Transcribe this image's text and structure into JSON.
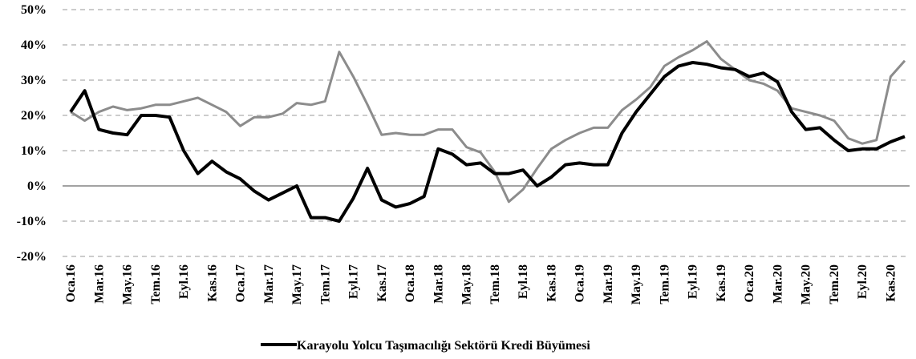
{
  "chart_data": {
    "type": "line",
    "categories": [
      "Oca.16",
      null,
      "Mar.16",
      null,
      "May.16",
      null,
      "Tem.16",
      null,
      "Eyl.16",
      null,
      "Kas.16",
      null,
      "Oca.17",
      null,
      "Mar.17",
      null,
      "May.17",
      null,
      "Tem.17",
      null,
      "Eyl.17",
      null,
      "Kas.17",
      null,
      "Oca.18",
      null,
      "Mar.18",
      null,
      "May.18",
      null,
      "Tem.18",
      null,
      "Eyl.18",
      null,
      "Kas.18",
      null,
      "Oca.19",
      null,
      "Mar.19",
      null,
      "May.19",
      null,
      "Tem.19",
      null,
      "Eyl.19",
      null,
      "Kas.19",
      null,
      "Oca.20",
      null,
      "Mar.20",
      null,
      "May.20",
      null,
      "Tem.20",
      null,
      "Eyl.20",
      null,
      "Kas.20",
      null
    ],
    "series": [
      {
        "name": "Karayolu Yolcu Taşımacılığı Sektörü Kredi Büyümesi",
        "color": "#000000",
        "values": [
          21,
          27,
          16,
          15,
          14.5,
          20,
          20,
          19.5,
          10,
          3.5,
          7,
          4,
          2,
          -1.5,
          -4,
          -2,
          0,
          -9,
          -9,
          -10,
          -3.5,
          5,
          -4,
          -6,
          -5,
          -3,
          10.5,
          9,
          6,
          6.5,
          3.5,
          3.5,
          4.5,
          0,
          2.5,
          6,
          6.5,
          6,
          6,
          15,
          21,
          26,
          31,
          34,
          35,
          34.5,
          33.5,
          33,
          31,
          32,
          29.5,
          21,
          16,
          16.5,
          13,
          10,
          10.5,
          10.5,
          12.5,
          14
        ]
      },
      {
        "color": "#8c8c8c",
        "values": [
          21,
          18.5,
          21,
          22.5,
          21.5,
          22,
          23,
          23,
          24,
          25,
          23,
          21,
          17,
          19.5,
          19.5,
          20.5,
          23.5,
          23,
          24,
          38,
          31,
          23,
          14.5,
          15,
          14.5,
          14.5,
          16,
          16,
          11,
          9.5,
          4,
          -4.5,
          -1,
          5,
          10.5,
          13,
          15,
          16.5,
          16.5,
          21.5,
          24.5,
          28,
          34,
          36.5,
          38.5,
          41,
          36,
          33,
          30,
          29,
          27,
          22,
          21,
          20,
          18.5,
          13.5,
          12,
          13,
          31,
          35.5
        ]
      }
    ],
    "ylim": [
      -20,
      50
    ],
    "yticks": [
      {
        "value": -20,
        "label": "-20%"
      },
      {
        "value": -10,
        "label": "-10%"
      },
      {
        "value": 0,
        "label": "0%"
      },
      {
        "value": 10,
        "label": "10%"
      },
      {
        "value": 20,
        "label": "20%"
      },
      {
        "value": 30,
        "label": "30%"
      },
      {
        "value": 40,
        "label": "40%"
      },
      {
        "value": 50,
        "label": "50%"
      }
    ],
    "grid": true
  }
}
